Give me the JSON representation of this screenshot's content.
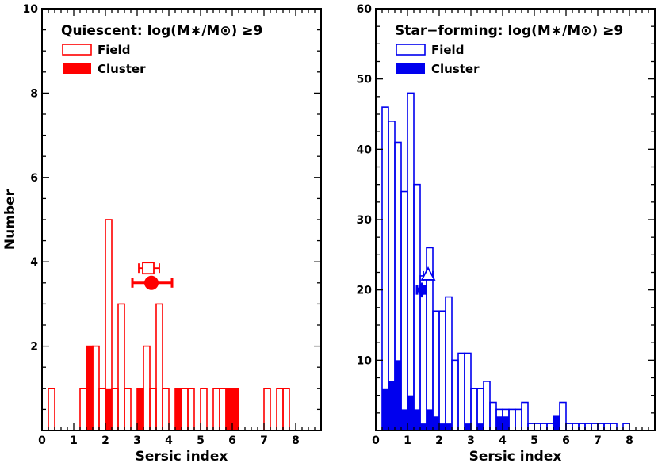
{
  "chart_data": [
    {
      "type": "histogram",
      "title": "Quiescent: log(M∗/M⊙) ≥9",
      "xlabel": "Sersic index",
      "ylabel": "Number",
      "xlim": [
        0,
        8.8
      ],
      "ylim": [
        0,
        10
      ],
      "xticks": [
        0,
        1,
        2,
        3,
        4,
        5,
        6,
        7,
        8
      ],
      "yticks": [
        2,
        4,
        6,
        8,
        10
      ],
      "bin_width": 0.2,
      "legend": {
        "position": "top-left",
        "field_label": "Field",
        "cluster_label": "Cluster"
      },
      "color": "#ff0000",
      "series": [
        {
          "name": "Field",
          "style": "step",
          "bins": [
            {
              "x0": 0.2,
              "v": 1
            },
            {
              "x0": 1.2,
              "v": 1
            },
            {
              "x0": 1.4,
              "v": 2
            },
            {
              "x0": 1.6,
              "v": 2
            },
            {
              "x0": 1.8,
              "v": 1
            },
            {
              "x0": 2.0,
              "v": 5
            },
            {
              "x0": 2.2,
              "v": 1
            },
            {
              "x0": 2.4,
              "v": 3
            },
            {
              "x0": 2.6,
              "v": 1
            },
            {
              "x0": 3.0,
              "v": 1
            },
            {
              "x0": 3.2,
              "v": 2
            },
            {
              "x0": 3.4,
              "v": 1
            },
            {
              "x0": 3.6,
              "v": 3
            },
            {
              "x0": 3.8,
              "v": 1
            },
            {
              "x0": 4.2,
              "v": 1
            },
            {
              "x0": 4.4,
              "v": 1
            },
            {
              "x0": 4.6,
              "v": 1
            },
            {
              "x0": 5.0,
              "v": 1
            },
            {
              "x0": 5.4,
              "v": 1
            },
            {
              "x0": 5.6,
              "v": 1
            },
            {
              "x0": 5.8,
              "v": 1
            },
            {
              "x0": 6.0,
              "v": 1
            },
            {
              "x0": 7.0,
              "v": 1
            },
            {
              "x0": 7.4,
              "v": 1
            },
            {
              "x0": 7.6,
              "v": 1
            }
          ]
        },
        {
          "name": "Cluster",
          "style": "filled",
          "bins": [
            {
              "x0": 1.4,
              "v": 2
            },
            {
              "x0": 2.0,
              "v": 1
            },
            {
              "x0": 3.0,
              "v": 1
            },
            {
              "x0": 4.2,
              "v": 1
            },
            {
              "x0": 5.8,
              "v": 1
            },
            {
              "x0": 6.0,
              "v": 1
            }
          ]
        }
      ],
      "markers": [
        {
          "name": "Field median",
          "shape": "open-square",
          "x": 3.35,
          "y": 3.85,
          "xerr": [
            3.05,
            3.7
          ]
        },
        {
          "name": "Cluster median",
          "shape": "filled-circle",
          "x": 3.45,
          "y": 3.5,
          "xerr": [
            2.85,
            4.1
          ]
        }
      ]
    },
    {
      "type": "histogram",
      "title": "Star−forming: log(M∗/M⊙) ≥9",
      "xlabel": "Sersic index",
      "ylabel": "",
      "xlim": [
        0,
        8.8
      ],
      "ylim": [
        0,
        60
      ],
      "xticks": [
        0,
        1,
        2,
        3,
        4,
        5,
        6,
        7,
        8
      ],
      "yticks": [
        10,
        20,
        30,
        40,
        50,
        60
      ],
      "bin_width": 0.2,
      "legend": {
        "position": "top-left",
        "field_label": "Field",
        "cluster_label": "Cluster"
      },
      "color": "#0000ee",
      "series": [
        {
          "name": "Field",
          "style": "step",
          "bins": [
            {
              "x0": 0.2,
              "v": 46
            },
            {
              "x0": 0.4,
              "v": 44
            },
            {
              "x0": 0.6,
              "v": 41
            },
            {
              "x0": 0.8,
              "v": 34
            },
            {
              "x0": 1.0,
              "v": 48
            },
            {
              "x0": 1.2,
              "v": 35
            },
            {
              "x0": 1.4,
              "v": 22
            },
            {
              "x0": 1.6,
              "v": 26
            },
            {
              "x0": 1.8,
              "v": 17
            },
            {
              "x0": 2.0,
              "v": 17
            },
            {
              "x0": 2.2,
              "v": 19
            },
            {
              "x0": 2.4,
              "v": 10
            },
            {
              "x0": 2.6,
              "v": 11
            },
            {
              "x0": 2.8,
              "v": 11
            },
            {
              "x0": 3.0,
              "v": 6
            },
            {
              "x0": 3.2,
              "v": 6
            },
            {
              "x0": 3.4,
              "v": 7
            },
            {
              "x0": 3.6,
              "v": 4
            },
            {
              "x0": 3.8,
              "v": 3
            },
            {
              "x0": 4.0,
              "v": 3
            },
            {
              "x0": 4.2,
              "v": 3
            },
            {
              "x0": 4.4,
              "v": 3
            },
            {
              "x0": 4.6,
              "v": 4
            },
            {
              "x0": 4.8,
              "v": 1
            },
            {
              "x0": 5.0,
              "v": 1
            },
            {
              "x0": 5.2,
              "v": 1
            },
            {
              "x0": 5.4,
              "v": 1
            },
            {
              "x0": 5.6,
              "v": 2
            },
            {
              "x0": 5.8,
              "v": 4
            },
            {
              "x0": 6.0,
              "v": 1
            },
            {
              "x0": 6.2,
              "v": 1
            },
            {
              "x0": 6.4,
              "v": 1
            },
            {
              "x0": 6.6,
              "v": 1
            },
            {
              "x0": 6.8,
              "v": 1
            },
            {
              "x0": 7.0,
              "v": 1
            },
            {
              "x0": 7.2,
              "v": 1
            },
            {
              "x0": 7.4,
              "v": 1
            },
            {
              "x0": 7.8,
              "v": 1
            }
          ]
        },
        {
          "name": "Cluster",
          "style": "filled",
          "bins": [
            {
              "x0": 0.2,
              "v": 6
            },
            {
              "x0": 0.4,
              "v": 7
            },
            {
              "x0": 0.6,
              "v": 10
            },
            {
              "x0": 0.8,
              "v": 3
            },
            {
              "x0": 1.0,
              "v": 5
            },
            {
              "x0": 1.2,
              "v": 3
            },
            {
              "x0": 1.4,
              "v": 1
            },
            {
              "x0": 1.6,
              "v": 3
            },
            {
              "x0": 1.8,
              "v": 2
            },
            {
              "x0": 2.0,
              "v": 1
            },
            {
              "x0": 2.2,
              "v": 1
            },
            {
              "x0": 2.8,
              "v": 1
            },
            {
              "x0": 3.2,
              "v": 1
            },
            {
              "x0": 3.8,
              "v": 2
            },
            {
              "x0": 4.0,
              "v": 2
            },
            {
              "x0": 5.6,
              "v": 2
            }
          ]
        }
      ],
      "markers": [
        {
          "name": "Field median",
          "shape": "open-triangle",
          "x": 1.65,
          "y": 22,
          "xerr": [
            1.5,
            1.8
          ]
        },
        {
          "name": "Cluster median",
          "shape": "filled-diamond",
          "x": 1.45,
          "y": 20,
          "xerr": [
            1.3,
            1.55
          ]
        }
      ]
    }
  ]
}
